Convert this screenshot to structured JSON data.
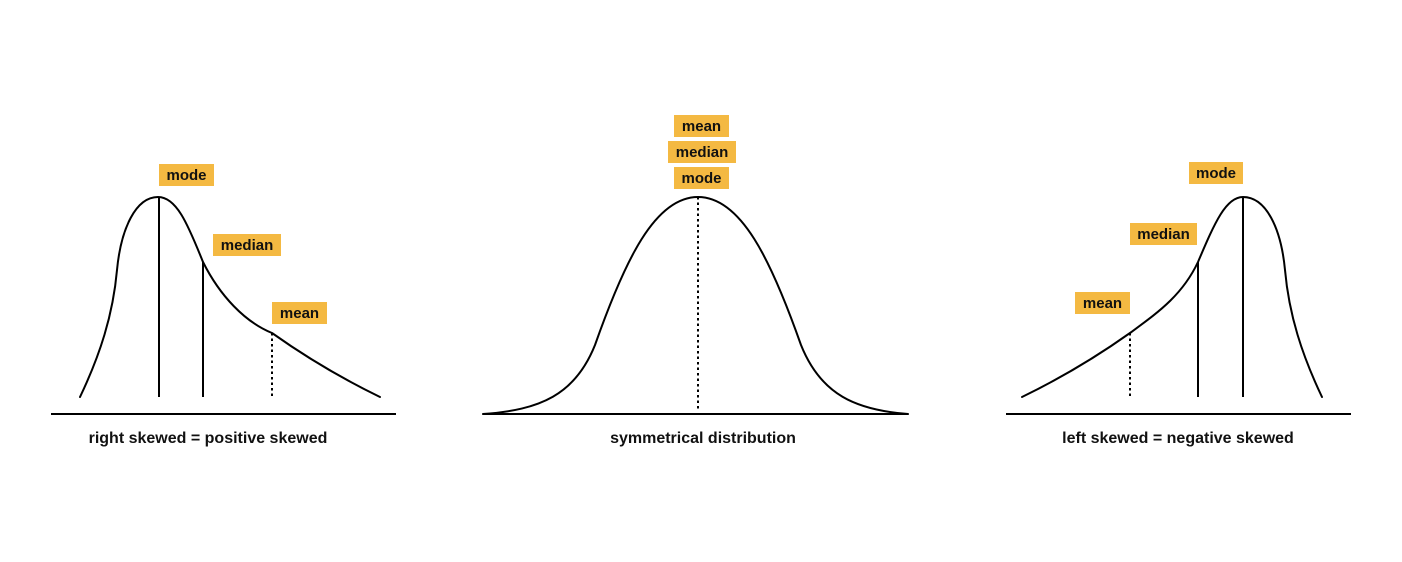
{
  "colors": {
    "label_bg": "#f4b942",
    "stroke": "#000000",
    "background": "#ffffff"
  },
  "right_skewed": {
    "caption": "right skewed = positive skewed",
    "mode_label": "mode",
    "median_label": "median",
    "mean_label": "mean"
  },
  "symmetrical": {
    "caption": "symmetrical distribution",
    "mean_label": "mean",
    "median_label": "median",
    "mode_label": "mode"
  },
  "left_skewed": {
    "caption": "left skewed = negative skewed",
    "mode_label": "mode",
    "median_label": "median",
    "mean_label": "mean"
  }
}
